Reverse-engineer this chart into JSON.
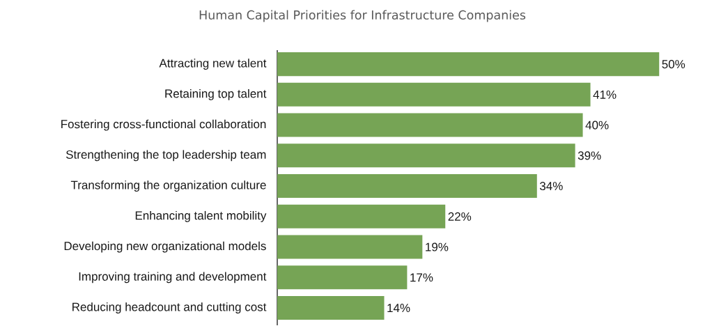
{
  "chart_data": {
    "type": "bar",
    "orientation": "horizontal",
    "title": "Human Capital Priorities for Infrastructure Companies",
    "categories": [
      "Attracting new talent",
      "Retaining top talent",
      "Fostering cross-functional collaboration",
      "Strengthening the top leadership team",
      "Transforming the organization culture",
      "Enhancing talent mobility",
      "Developing new organizational models",
      "Improving training and development",
      "Reducing headcount and cutting cost"
    ],
    "values": [
      50,
      41,
      40,
      39,
      34,
      22,
      19,
      17,
      14
    ],
    "value_labels": [
      "50%",
      "41%",
      "40%",
      "39%",
      "34%",
      "22%",
      "19%",
      "17%",
      "14%"
    ],
    "color": "#76a455"
  }
}
